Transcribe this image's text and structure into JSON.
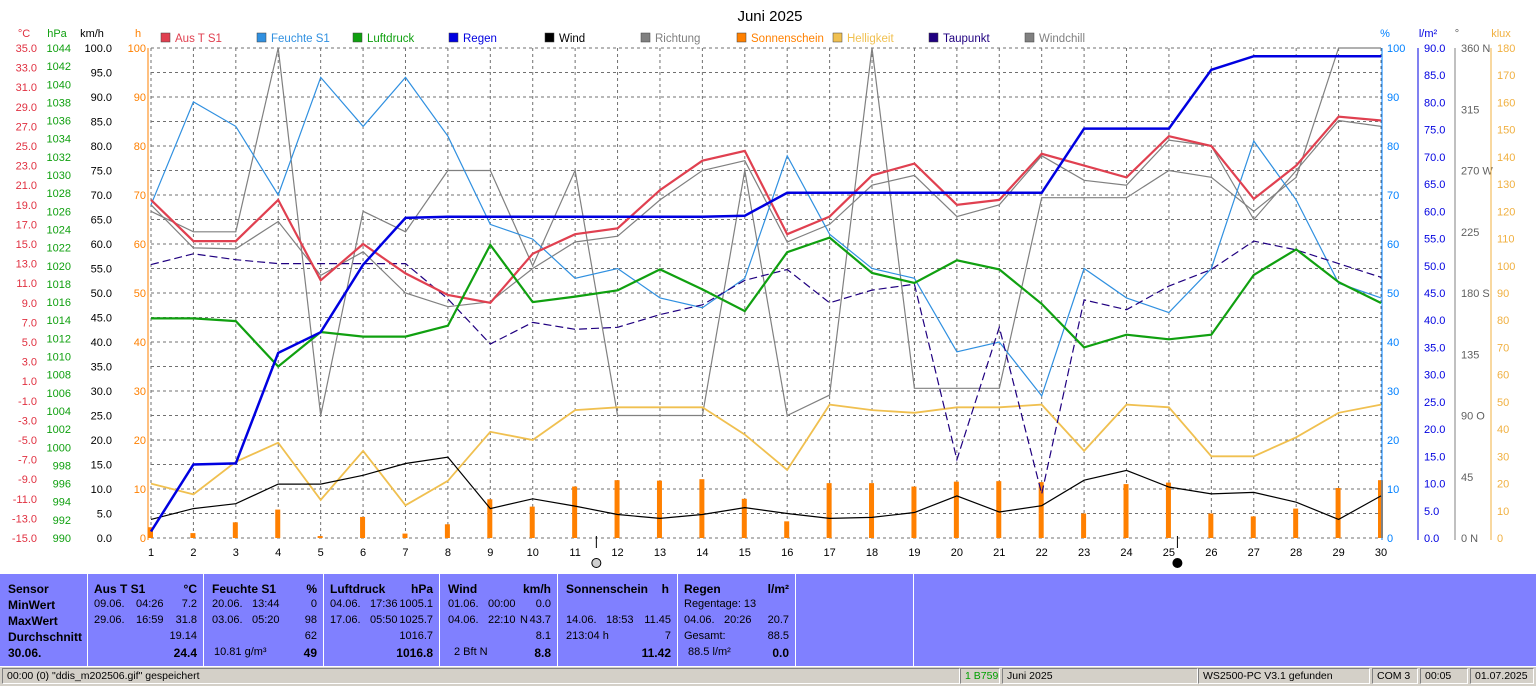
{
  "chart_data": {
    "type": "line",
    "title": "Juni 2025",
    "x": [
      1,
      2,
      3,
      4,
      5,
      6,
      7,
      8,
      9,
      10,
      11,
      12,
      13,
      14,
      15,
      16,
      17,
      18,
      19,
      20,
      21,
      22,
      23,
      24,
      25,
      26,
      27,
      28,
      29,
      30
    ],
    "x_tick_labels": [
      "1",
      "2",
      "3",
      "4",
      "5",
      "6",
      "7",
      "8",
      "9",
      "10",
      "11",
      "12",
      "13",
      "14",
      "15",
      "16",
      "17",
      "18",
      "19",
      "20",
      "21",
      "22",
      "23",
      "24",
      "25",
      "26",
      "27",
      "28",
      "29",
      "30"
    ],
    "axes": {
      "temp": {
        "unit": "°C",
        "range": [
          -15,
          35
        ],
        "ticks": [
          "35.0",
          "33.0",
          "31.0",
          "29.0",
          "27.0",
          "25.0",
          "23.0",
          "21.0",
          "19.0",
          "17.0",
          "15.0",
          "13.0",
          "11.0",
          "9.0",
          "7.0",
          "5.0",
          "3.0",
          "1.0",
          "-1.0",
          "-3.0",
          "-5.0",
          "-7.0",
          "-9.0",
          "-11.0",
          "-13.0",
          "-15.0"
        ]
      },
      "press": {
        "unit": "hPa",
        "range": [
          990,
          1044
        ],
        "ticks": [
          "1044",
          "1042",
          "1040",
          "1038",
          "1036",
          "1034",
          "1032",
          "1030",
          "1028",
          "1026",
          "1024",
          "1022",
          "1020",
          "1018",
          "1016",
          "1014",
          "1012",
          "1010",
          "1008",
          "1006",
          "1004",
          "1002",
          "1000",
          "998",
          "996",
          "994",
          "992",
          "990"
        ]
      },
      "wind": {
        "unit": "km/h",
        "range": [
          0,
          100
        ],
        "ticks": [
          "100.0",
          "95.0",
          "90.0",
          "85.0",
          "80.0",
          "75.0",
          "70.0",
          "65.0",
          "60.0",
          "55.0",
          "50.0",
          "45.0",
          "40.0",
          "35.0",
          "30.0",
          "25.0",
          "20.0",
          "15.0",
          "10.0",
          "5.0",
          "0.0"
        ]
      },
      "sun": {
        "unit": "h",
        "range": [
          0,
          100
        ],
        "ticks": [
          "100",
          "90",
          "80",
          "70",
          "60",
          "50",
          "40",
          "30",
          "20",
          "10",
          "0"
        ]
      },
      "hum": {
        "unit": "%",
        "range": [
          0,
          100
        ],
        "ticks": [
          "100",
          "90",
          "80",
          "70",
          "60",
          "50",
          "40",
          "30",
          "20",
          "10",
          "0"
        ]
      },
      "rain": {
        "unit": "l/m²",
        "range": [
          0,
          90
        ],
        "ticks": [
          "90.0",
          "85.0",
          "80.0",
          "75.0",
          "70.0",
          "65.0",
          "60.0",
          "55.0",
          "50.0",
          "45.0",
          "40.0",
          "35.0",
          "30.0",
          "25.0",
          "20.0",
          "15.0",
          "10.0",
          "5.0",
          "0.0"
        ]
      },
      "dir": {
        "unit": "°",
        "range": [
          0,
          360
        ],
        "ticks": [
          {
            "v": 360,
            "t": "360 N"
          },
          {
            "v": 315,
            "t": "315"
          },
          {
            "v": 270,
            "t": "270 W"
          },
          {
            "v": 225,
            "t": "225"
          },
          {
            "v": 180,
            "t": "180 S"
          },
          {
            "v": 135,
            "t": "135"
          },
          {
            "v": 90,
            "t": "90  O"
          },
          {
            "v": 45,
            "t": "45"
          },
          {
            "v": 0,
            "t": "0   N"
          }
        ]
      },
      "lux": {
        "unit": "klux",
        "range": [
          0,
          180
        ],
        "ticks": [
          "180",
          "170",
          "160",
          "150",
          "140",
          "130",
          "120",
          "110",
          "100",
          "90",
          "80",
          "70",
          "60",
          "50",
          "40",
          "30",
          "20",
          "10",
          "0"
        ]
      }
    },
    "series": [
      {
        "name": "Aus T S1",
        "axis": "temp",
        "color": "#e04050",
        "values": [
          19.5,
          15.3,
          15.3,
          19.5,
          11.3,
          15.0,
          12.0,
          9.8,
          9.0,
          14.0,
          16.0,
          16.6,
          20.5,
          23.5,
          24.5,
          16.0,
          17.8,
          22.0,
          23.2,
          19.0,
          19.5,
          24.2,
          23.0,
          21.8,
          26.0,
          25.0,
          19.6,
          23.0,
          28.0,
          27.6
        ]
      },
      {
        "name": "Feuchte S1",
        "axis": "hum",
        "color": "#3090e0",
        "values": [
          68,
          89,
          84,
          70,
          94,
          84,
          94,
          82,
          64,
          61,
          53,
          55,
          49,
          47,
          53,
          78,
          62,
          55,
          53,
          38,
          40,
          29,
          55,
          49,
          46,
          55,
          81,
          69,
          52,
          49
        ]
      },
      {
        "name": "Luftdruck",
        "axis": "press",
        "color": "#10a010",
        "values": [
          1014.2,
          1014.2,
          1013.9,
          1008.9,
          1012.7,
          1012.2,
          1012.2,
          1013.4,
          1022.3,
          1016.0,
          1016.6,
          1017.3,
          1019.6,
          1017.4,
          1015.0,
          1021.5,
          1023.1,
          1019.2,
          1018.1,
          1020.6,
          1019.6,
          1015.8,
          1011.0,
          1012.4,
          1011.9,
          1012.4,
          1019.0,
          1021.8,
          1018.2,
          1015.9
        ]
      },
      {
        "name": "Regen",
        "axis": "rain",
        "color": "#0000e0",
        "values": [
          1.2,
          13.5,
          13.7,
          34.0,
          37.8,
          50.2,
          58.8,
          59.0,
          59.0,
          59.0,
          59.0,
          59.0,
          59.0,
          59.0,
          59.2,
          63.4,
          63.4,
          63.4,
          63.4,
          63.4,
          63.4,
          63.4,
          75.2,
          75.2,
          75.2,
          86.0,
          88.5,
          88.5,
          88.5,
          88.5
        ]
      },
      {
        "name": "Wind",
        "axis": "wind",
        "color": "#000000",
        "values": [
          3.8,
          6.0,
          7.0,
          11.0,
          11.0,
          12.8,
          15.2,
          16.5,
          6.0,
          8.0,
          6.5,
          4.8,
          4.0,
          4.8,
          6.2,
          5.0,
          4.0,
          4.2,
          5.2,
          8.6,
          5.3,
          6.6,
          11.8,
          13.8,
          10.4,
          9.0,
          9.3,
          7.3,
          3.8,
          8.6
        ]
      },
      {
        "name": "Richtung",
        "axis": "dir",
        "color": "#808080",
        "values": [
          240,
          225,
          225,
          360,
          90,
          240,
          225,
          270,
          270,
          200,
          270,
          90,
          90,
          90,
          270,
          90,
          105,
          360,
          110,
          110,
          110,
          250,
          250,
          250,
          270,
          265,
          240,
          265,
          360,
          360
        ]
      },
      {
        "name": "Sonnenschein",
        "axis": "sun",
        "color": "#ff8000",
        "type": "bar",
        "values": [
          2.2,
          1.0,
          3.2,
          5.8,
          0.4,
          4.3,
          0.9,
          2.8,
          7.9,
          6.4,
          10.5,
          11.8,
          11.7,
          12.0,
          8.0,
          3.4,
          11.2,
          11.2,
          10.5,
          11.5,
          11.6,
          11.4,
          5.0,
          11.0,
          11.3,
          5.0,
          4.4,
          6.0,
          10.2,
          11.8
        ]
      },
      {
        "name": "Helligkeit",
        "axis": "lux",
        "color": "#f0c050",
        "values": [
          20,
          16,
          28,
          35,
          14,
          32,
          12,
          21,
          39,
          36,
          47,
          48,
          48,
          48,
          38,
          25,
          49,
          47,
          46,
          48,
          48,
          49,
          32,
          49,
          48,
          30,
          30,
          37,
          46,
          49
        ]
      },
      {
        "name": "Taupunkt",
        "axis": "temp",
        "color": "#200080",
        "dashed": true,
        "values": [
          12.9,
          14.0,
          13.4,
          13.0,
          13.0,
          13.0,
          13.0,
          9.4,
          4.8,
          7.0,
          6.3,
          6.5,
          7.8,
          8.8,
          11.3,
          12.4,
          9.0,
          10.3,
          10.9,
          -7.0,
          6.5,
          -10.5,
          9.3,
          8.3,
          10.7,
          12.4,
          15.3,
          14.4,
          13.0,
          11.6
        ]
      },
      {
        "name": "Windchill",
        "axis": "temp",
        "color": "#808080",
        "values": [
          19.0,
          14.6,
          14.5,
          17.3,
          11.8,
          14.2,
          10.0,
          8.6,
          9.1,
          12.5,
          15.2,
          15.8,
          19.5,
          22.5,
          23.5,
          15.2,
          17.0,
          21.0,
          22.0,
          17.8,
          19.0,
          24.0,
          21.5,
          21.0,
          25.6,
          25.0,
          17.5,
          22.5,
          27.6,
          27.0
        ]
      }
    ],
    "grid": true,
    "legend_position": "top"
  },
  "axis_headers": {
    "temp": "°C",
    "press": "hPa",
    "wind": "km/h",
    "sun": "h",
    "hum": "%",
    "rain": "l/m²",
    "dir": "°",
    "lux": "klux"
  },
  "colors": {
    "panel": "#8080ff",
    "status": "#d4d0c8",
    "moon_marker": "#000000"
  },
  "moon_icons": [
    {
      "day": "11.5",
      "name": "full-moon-icon"
    },
    {
      "day": "25.2",
      "name": "new-moon-icon"
    }
  ],
  "stats": {
    "sensor": {
      "h": "Sensor",
      "min": "MinWert",
      "max": "MaxWert",
      "avg": "Durchschnitt",
      "day": "30.06."
    },
    "temp": {
      "title": "Aus T S1",
      "unit": "°C",
      "min_date": "09.06.",
      "min_time": "04:26",
      "min_val": "7.2",
      "max_date": "29.06.",
      "max_time": "16:59",
      "max_val": "31.8",
      "avg": "19.14",
      "cur": "24.4"
    },
    "hum": {
      "title": "Feuchte S1",
      "unit": "%",
      "min_date": "20.06.",
      "min_time": "13:44",
      "min_val": "0",
      "max_date": "03.06.",
      "max_time": "05:20",
      "max_val": "98",
      "avg": "62",
      "abs": "10.81 g/m³",
      "cur": "49"
    },
    "press": {
      "title": "Luftdruck",
      "unit": "hPa",
      "min_date": "04.06.",
      "min_time": "17:36",
      "min_val": "1005.1",
      "max_date": "17.06.",
      "max_time": "05:50",
      "max_val": "1025.7",
      "avg": "1016.7",
      "cur": "1016.8"
    },
    "wind": {
      "title": "Wind",
      "unit": "km/h",
      "min_date": "01.06.",
      "min_time": "00:00",
      "min_val": "0.0",
      "max_date": "04.06.",
      "max_time": "22:10",
      "max_dir": "N",
      "max_val": "43.7",
      "avg": "8.1",
      "cur_bft": "2 Bft N",
      "cur": "8.8"
    },
    "sun": {
      "title": "Sonnenschein",
      "unit": "h",
      "max_date": "14.06.",
      "max_time": "18:53",
      "max_val": "11.45",
      "total": "213:04 h",
      "avg": "7",
      "cur": "11.42"
    },
    "rain": {
      "title": "Regen",
      "unit": "l/m²",
      "days": "Regentage: 13",
      "max_date": "04.06.",
      "max_time": "20:26",
      "max_val": "20.7",
      "total_label": "Gesamt:",
      "total": "88.5",
      "cur_total": "88.5 l/m²",
      "cur": "0.0"
    }
  },
  "status": {
    "time": "00:00",
    "count": "(0)",
    "message": "\"ddis_m202506.gif\"  gespeichert",
    "size": "1 B759",
    "month": "Juni 2025",
    "device": "WS2500-PC V3.1 gefunden",
    "port": "COM 3",
    "clock": "00:05",
    "date": "01.07.2025"
  }
}
